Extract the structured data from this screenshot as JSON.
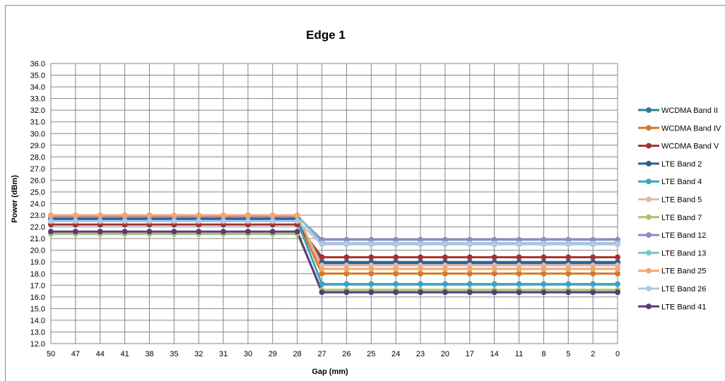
{
  "chart_data": {
    "type": "line",
    "title": "Edge 1",
    "xlabel": "Gap (mm)",
    "ylabel": "Power (dBm)",
    "ylim": [
      12.0,
      36.0
    ],
    "ytick_step": 1.0,
    "grid": true,
    "legend_position": "right",
    "categories": [
      "50",
      "47",
      "44",
      "41",
      "38",
      "35",
      "32",
      "31",
      "30",
      "29",
      "28",
      "27",
      "26",
      "25",
      "24",
      "23",
      "20",
      "17",
      "14",
      "11",
      "8",
      "5",
      "2",
      "0"
    ],
    "series": [
      {
        "name": "WCDMA Band II",
        "color": "#2a7f93",
        "values": [
          22.6,
          22.6,
          22.6,
          22.6,
          22.6,
          22.6,
          22.6,
          22.6,
          22.6,
          22.6,
          22.6,
          19.0,
          19.0,
          19.0,
          19.0,
          19.0,
          19.0,
          19.0,
          19.0,
          19.0,
          19.0,
          19.0,
          19.0,
          19.0
        ]
      },
      {
        "name": "WCDMA Band IV",
        "color": "#d07a2e",
        "values": [
          22.7,
          22.7,
          22.7,
          22.7,
          22.7,
          22.7,
          22.7,
          22.7,
          22.7,
          22.7,
          22.7,
          18.0,
          18.0,
          18.0,
          18.0,
          18.0,
          18.0,
          18.0,
          18.0,
          18.0,
          18.0,
          18.0,
          18.0,
          18.0
        ]
      },
      {
        "name": "WCDMA Band V",
        "color": "#9e3533",
        "values": [
          22.2,
          22.2,
          22.2,
          22.2,
          22.2,
          22.2,
          22.2,
          22.2,
          22.2,
          22.2,
          22.2,
          19.4,
          19.4,
          19.4,
          19.4,
          19.4,
          19.4,
          19.4,
          19.4,
          19.4,
          19.4,
          19.4,
          19.4,
          19.4
        ]
      },
      {
        "name": "LTE Band 2",
        "color": "#2f5d91",
        "values": [
          22.7,
          22.7,
          22.7,
          22.7,
          22.7,
          22.7,
          22.7,
          22.7,
          22.7,
          22.7,
          22.7,
          18.9,
          18.9,
          18.9,
          18.9,
          18.9,
          18.9,
          18.9,
          18.9,
          18.9,
          18.9,
          18.9,
          18.9,
          18.9
        ]
      },
      {
        "name": "LTE Band 4",
        "color": "#37a5c2",
        "values": [
          22.5,
          22.5,
          22.5,
          22.5,
          22.5,
          22.5,
          22.5,
          22.5,
          22.5,
          22.5,
          22.5,
          17.1,
          17.1,
          17.1,
          17.1,
          17.1,
          17.1,
          17.1,
          17.1,
          17.1,
          17.1,
          17.1,
          17.1,
          17.1
        ]
      },
      {
        "name": "LTE Band 5",
        "color": "#e0b6b3",
        "values": [
          22.9,
          22.9,
          22.9,
          22.9,
          22.9,
          22.9,
          22.9,
          22.9,
          22.9,
          22.9,
          22.9,
          18.7,
          18.7,
          18.7,
          18.7,
          18.7,
          18.7,
          18.7,
          18.7,
          18.7,
          18.7,
          18.7,
          18.7,
          18.7
        ]
      },
      {
        "name": "LTE Band 7",
        "color": "#a7c46c",
        "values": [
          21.4,
          21.4,
          21.4,
          21.4,
          21.4,
          21.4,
          21.4,
          21.4,
          21.4,
          21.4,
          21.4,
          16.6,
          16.6,
          16.6,
          16.6,
          16.6,
          16.6,
          16.6,
          16.6,
          16.6,
          16.6,
          16.6,
          16.6,
          16.6
        ]
      },
      {
        "name": "LTE Band 12",
        "color": "#9a84c4",
        "values": [
          22.9,
          22.9,
          22.9,
          22.9,
          22.9,
          22.9,
          22.9,
          22.9,
          22.9,
          22.9,
          22.9,
          20.9,
          20.9,
          20.9,
          20.9,
          20.9,
          20.9,
          20.9,
          20.9,
          20.9,
          20.9,
          20.9,
          20.9,
          20.9
        ]
      },
      {
        "name": "LTE Band 13",
        "color": "#7ec4cf",
        "values": [
          23.0,
          23.0,
          23.0,
          23.0,
          23.0,
          23.0,
          23.0,
          23.0,
          23.0,
          23.0,
          23.0,
          20.6,
          20.6,
          20.6,
          20.6,
          20.6,
          20.6,
          20.6,
          20.6,
          20.6,
          20.6,
          20.6,
          20.6,
          20.6
        ]
      },
      {
        "name": "LTE Band 25",
        "color": "#f5a76a",
        "values": [
          23.0,
          23.0,
          23.0,
          23.0,
          23.0,
          23.0,
          23.0,
          23.0,
          23.0,
          23.0,
          23.0,
          18.4,
          18.4,
          18.4,
          18.4,
          18.4,
          18.4,
          18.4,
          18.4,
          18.4,
          18.4,
          18.4,
          18.4,
          18.4
        ]
      },
      {
        "name": "LTE Band 26",
        "color": "#b3c8e4",
        "values": [
          22.5,
          22.5,
          22.5,
          22.5,
          22.5,
          22.5,
          22.5,
          22.5,
          22.5,
          22.5,
          22.5,
          20.5,
          20.5,
          20.5,
          20.5,
          20.5,
          20.5,
          20.5,
          20.5,
          20.5,
          20.5,
          20.5,
          20.5,
          20.5
        ]
      },
      {
        "name": "LTE Band 41",
        "color": "#5b3a7b",
        "values": [
          21.6,
          21.6,
          21.6,
          21.6,
          21.6,
          21.6,
          21.6,
          21.6,
          21.6,
          21.6,
          21.6,
          16.4,
          16.4,
          16.4,
          16.4,
          16.4,
          16.4,
          16.4,
          16.4,
          16.4,
          16.4,
          16.4,
          16.4,
          16.4
        ]
      }
    ]
  }
}
